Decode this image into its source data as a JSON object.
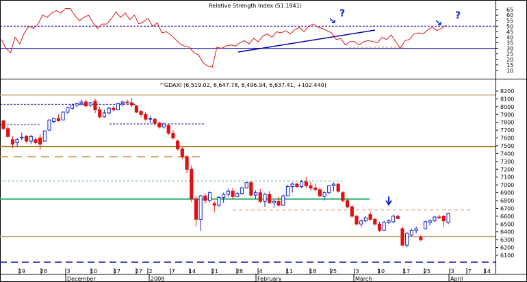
{
  "rsi_panel": {
    "title": "Relative Strength Index (51.1841)",
    "y_ticks": [
      10,
      15,
      20,
      25,
      30,
      35,
      40,
      45,
      50,
      55,
      60,
      65
    ],
    "ylim": [
      5,
      70
    ],
    "levels": [
      30,
      50
    ],
    "annotations": [
      "?",
      "?"
    ]
  },
  "price_panel": {
    "title": "^GDAXI (6,519.02, 6,647.78, 6,496.94, 6,637.41, +102.440)",
    "y_ticks": [
      6100,
      6200,
      6300,
      6400,
      6500,
      6600,
      6700,
      6800,
      6900,
      7000,
      7100,
      7200,
      7300,
      7400,
      7500,
      7600,
      7700,
      7800,
      7900,
      8000,
      8100,
      8200
    ],
    "ylim": [
      6000,
      8240
    ]
  },
  "x_axis": {
    "day_labels": [
      "19",
      "26",
      "3",
      "10",
      "17",
      "27",
      "2",
      "7",
      "14",
      "21",
      "28",
      "4",
      "11",
      "18",
      "25",
      "3",
      "10",
      "17",
      "25",
      "3",
      "7",
      "14"
    ],
    "month_labels": [
      "December",
      "2008",
      "February",
      "March",
      "April"
    ]
  },
  "chart_data": [
    {
      "type": "line",
      "title": "Relative Strength Index (51.1841)",
      "series": [
        {
          "name": "",
          "values": [
            38,
            30,
            26,
            40,
            34,
            44,
            50,
            48,
            52,
            60,
            58,
            62,
            64,
            62,
            66,
            66,
            60,
            55,
            58,
            60,
            53,
            48,
            52,
            52,
            57,
            63,
            58,
            62,
            56,
            60,
            52,
            54,
            57,
            50,
            53,
            44,
            45,
            42,
            38,
            34,
            32,
            31,
            26,
            24,
            17,
            14,
            13,
            31,
            30,
            32,
            33,
            32,
            35,
            37,
            34,
            39,
            36,
            41,
            43,
            40,
            45,
            44,
            46,
            43,
            47,
            49,
            45,
            50,
            52,
            49,
            48,
            46,
            44,
            38,
            39,
            33,
            36,
            36,
            33,
            36,
            37,
            36,
            35,
            40,
            38,
            42,
            36,
            30,
            37,
            38,
            43,
            44,
            43,
            47,
            49,
            46,
            48,
            51
          ]
        }
      ],
      "ylim": [
        5,
        70
      ]
    },
    {
      "type": "candlestick",
      "title": "^GDAXI (6,519.02, 6,647.78, 6,496.94, 6,637.41, +102.440)",
      "series": [
        {
          "name": "^GDAXI",
          "values": [
            [
              7820,
              7830,
              7700,
              7720
            ],
            [
              7720,
              7750,
              7600,
              7620
            ],
            [
              7580,
              7620,
              7470,
              7520
            ],
            [
              7540,
              7600,
              7490,
              7580
            ],
            [
              7600,
              7670,
              7570,
              7610
            ],
            [
              7620,
              7640,
              7540,
              7560
            ],
            [
              7560,
              7640,
              7520,
              7620
            ],
            [
              7580,
              7610,
              7520,
              7540
            ],
            [
              7600,
              7650,
              7450,
              7520
            ],
            [
              7560,
              7700,
              7550,
              7690
            ],
            [
              7700,
              7840,
              7690,
              7830
            ],
            [
              7810,
              7860,
              7790,
              7850
            ],
            [
              7850,
              7900,
              7810,
              7820
            ],
            [
              7830,
              7940,
              7830,
              7930
            ],
            [
              7930,
              8000,
              7910,
              7990
            ],
            [
              7980,
              8040,
              7960,
              8020
            ],
            [
              8020,
              8050,
              7990,
              8040
            ],
            [
              8040,
              8090,
              8010,
              8060
            ],
            [
              8060,
              8090,
              7990,
              8010
            ],
            [
              8020,
              8060,
              8000,
              8050
            ],
            [
              8070,
              8100,
              7920,
              7960
            ],
            [
              7960,
              8000,
              7850,
              7870
            ],
            [
              7870,
              7960,
              7860,
              7920
            ],
            [
              7920,
              8000,
              7900,
              7980
            ],
            [
              7980,
              8010,
              7940,
              7960
            ],
            [
              7960,
              8050,
              7950,
              8040
            ],
            [
              8040,
              8080,
              8000,
              8060
            ],
            [
              8060,
              8090,
              8020,
              8050
            ],
            [
              8050,
              8110,
              8000,
              8020
            ],
            [
              8010,
              8020,
              7920,
              7930
            ],
            [
              7940,
              7960,
              7870,
              7900
            ],
            [
              7900,
              7930,
              7820,
              7840
            ],
            [
              7840,
              7880,
              7790,
              7850
            ],
            [
              7840,
              7860,
              7760,
              7790
            ],
            [
              7790,
              7810,
              7720,
              7740
            ],
            [
              7740,
              7800,
              7720,
              7780
            ],
            [
              7760,
              7780,
              7640,
              7660
            ],
            [
              7660,
              7700,
              7580,
              7600
            ],
            [
              7560,
              7580,
              7440,
              7460
            ],
            [
              7460,
              7480,
              7330,
              7360
            ],
            [
              7360,
              7380,
              7150,
              7200
            ],
            [
              7200,
              7250,
              6780,
              6820
            ],
            [
              6820,
              6860,
              6470,
              6560
            ],
            [
              6560,
              6870,
              6410,
              6860
            ],
            [
              6860,
              6890,
              6760,
              6800
            ],
            [
              6800,
              6920,
              6780,
              6900
            ],
            [
              6760,
              6790,
              6650,
              6740
            ],
            [
              6740,
              6860,
              6720,
              6840
            ],
            [
              6840,
              6900,
              6770,
              6880
            ],
            [
              6880,
              6950,
              6850,
              6920
            ],
            [
              6920,
              6960,
              6820,
              6850
            ],
            [
              6850,
              6910,
              6840,
              6890
            ],
            [
              6890,
              6980,
              6880,
              6960
            ],
            [
              6960,
              7040,
              6960,
              7030
            ],
            [
              7030,
              7050,
              6850,
              6870
            ],
            [
              6870,
              6930,
              6820,
              6900
            ],
            [
              6900,
              6950,
              6770,
              6790
            ],
            [
              6790,
              6900,
              6720,
              6880
            ],
            [
              6880,
              6920,
              6760,
              6770
            ],
            [
              6770,
              6810,
              6710,
              6790
            ],
            [
              6790,
              6850,
              6720,
              6740
            ],
            [
              6740,
              6880,
              6730,
              6860
            ],
            [
              6860,
              7000,
              6860,
              6980
            ],
            [
              6980,
              7030,
              6900,
              7010
            ],
            [
              7010,
              7030,
              6960,
              6980
            ],
            [
              6980,
              7060,
              6960,
              7040
            ],
            [
              7040,
              7100,
              6960,
              6990
            ],
            [
              6990,
              7040,
              6930,
              6960
            ],
            [
              6960,
              7020,
              6920,
              6940
            ],
            [
              6940,
              6970,
              6840,
              6860
            ],
            [
              6850,
              6920,
              6800,
              6900
            ],
            [
              6900,
              7000,
              6880,
              6990
            ],
            [
              6990,
              7030,
              6920,
              7010
            ],
            [
              7010,
              7020,
              6900,
              6920
            ],
            [
              6900,
              6920,
              6780,
              6800
            ],
            [
              6800,
              6830,
              6700,
              6720
            ],
            [
              6720,
              6740,
              6580,
              6600
            ],
            [
              6600,
              6620,
              6480,
              6500
            ],
            [
              6500,
              6560,
              6460,
              6540
            ],
            [
              6540,
              6600,
              6520,
              6580
            ],
            [
              6620,
              6660,
              6540,
              6560
            ],
            [
              6560,
              6580,
              6480,
              6500
            ],
            [
              6500,
              6530,
              6400,
              6420
            ],
            [
              6420,
              6540,
              6420,
              6520
            ],
            [
              6520,
              6560,
              6500,
              6540
            ],
            [
              6530,
              6620,
              6510,
              6600
            ],
            [
              6600,
              6620,
              6560,
              6570
            ],
            [
              6440,
              6470,
              6210,
              6230
            ],
            [
              6230,
              6400,
              6200,
              6380
            ],
            [
              6360,
              6440,
              6340,
              6420
            ],
            [
              6420,
              6470,
              6380,
              6440
            ],
            [
              6330,
              6360,
              6280,
              6300
            ],
            [
              6440,
              6540,
              6430,
              6530
            ],
            [
              6520,
              6560,
              6480,
              6540
            ],
            [
              6540,
              6600,
              6530,
              6590
            ],
            [
              6590,
              6620,
              6560,
              6580
            ],
            [
              6600,
              6610,
              6460,
              6540
            ],
            [
              6519.02,
              6647.78,
              6496.94,
              6637.41
            ]
          ]
        }
      ],
      "ylim": [
        6000,
        8240
      ]
    }
  ]
}
